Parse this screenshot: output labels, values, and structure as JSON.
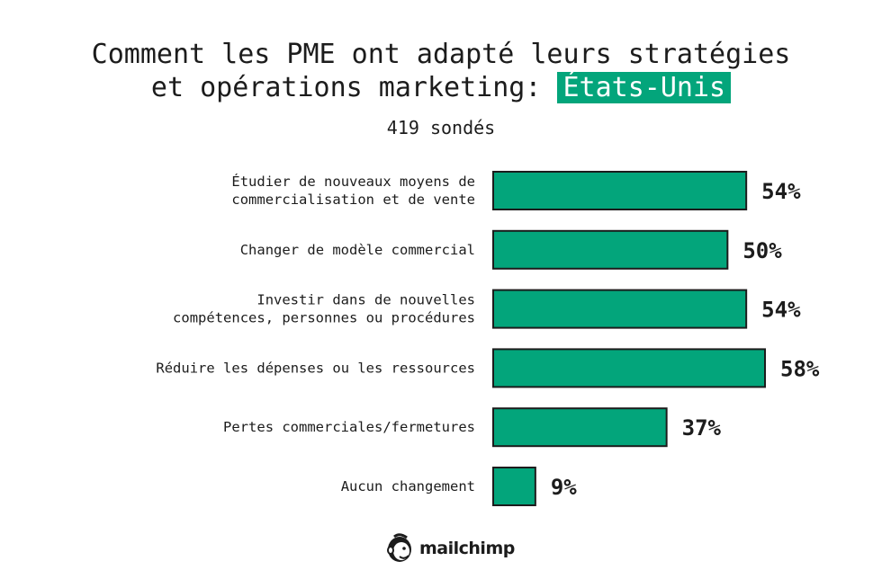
{
  "title": {
    "line1": "Comment les PME ont adapté leurs stratégies",
    "line2_prefix": "et opérations marketing: ",
    "line2_highlight": "États-Unis"
  },
  "subtitle": "419 sondés",
  "brand": {
    "name": "mailchimp",
    "icon": "freddie-chimp-logo-icon"
  },
  "colors": {
    "bar": "#03a57b",
    "bar_outline": "#1c1c1c",
    "highlight": "#03a57b",
    "text": "#1c1c1c"
  },
  "chart_data": {
    "type": "bar",
    "orientation": "horizontal",
    "title": "Comment les PME ont adapté leurs stratégies et opérations marketing: États-Unis",
    "subtitle": "419 sondés",
    "xlabel": "",
    "ylabel": "",
    "xlim": [
      0,
      58
    ],
    "grid": false,
    "unit": "%",
    "categories": [
      [
        "Étudier de nouveaux moyens de",
        "commercialisation et de vente"
      ],
      [
        "Changer de modèle commercial"
      ],
      [
        "Investir dans de nouvelles",
        "compétences, personnes ou procédures"
      ],
      [
        "Réduire les dépenses ou les ressources"
      ],
      [
        "Pertes commerciales/fermetures"
      ],
      [
        "Aucun changement"
      ]
    ],
    "values": [
      54,
      50,
      54,
      58,
      37,
      9
    ],
    "value_labels": [
      "54%",
      "50%",
      "54%",
      "58%",
      "37%",
      "9%"
    ]
  }
}
